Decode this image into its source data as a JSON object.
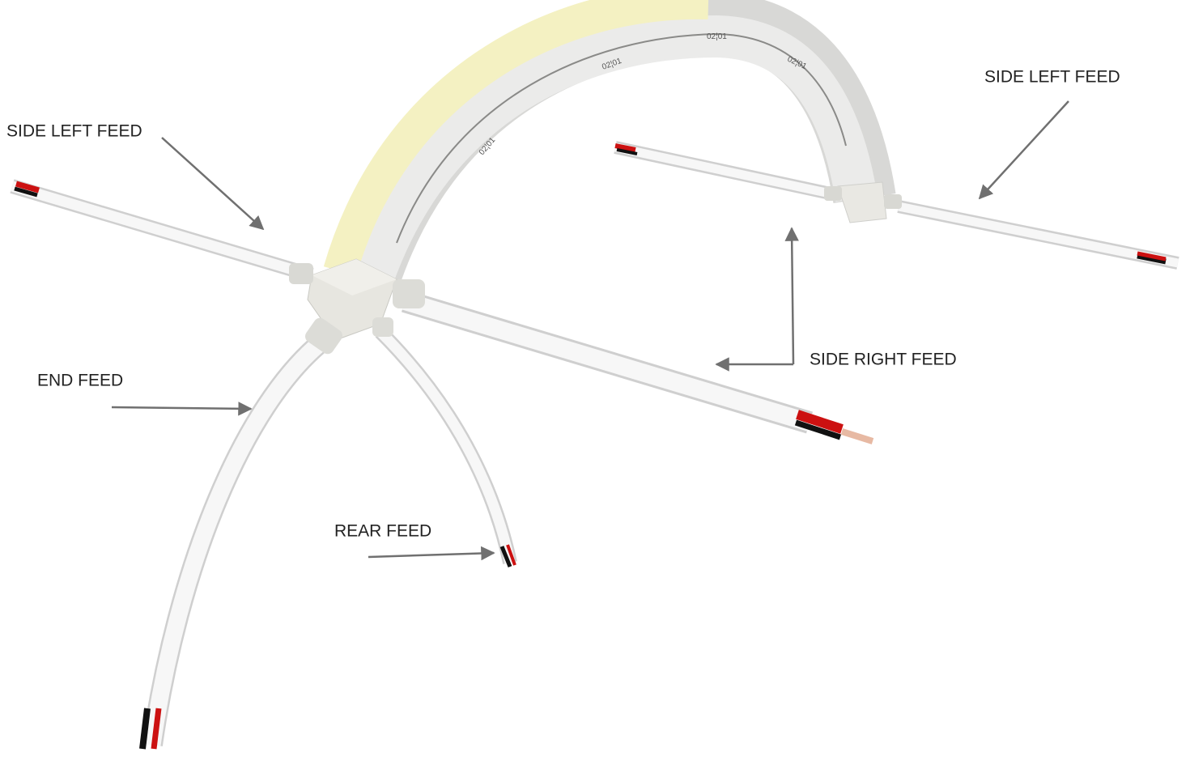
{
  "labels": {
    "side_left_feed_left": "SIDE LEFT FEED",
    "side_left_feed_right": "SIDE LEFT FEED",
    "side_right_feed": "SIDE RIGHT FEED",
    "end_feed": "END FEED",
    "rear_feed": "REAR FEED"
  },
  "cut_mark": "02¦01"
}
